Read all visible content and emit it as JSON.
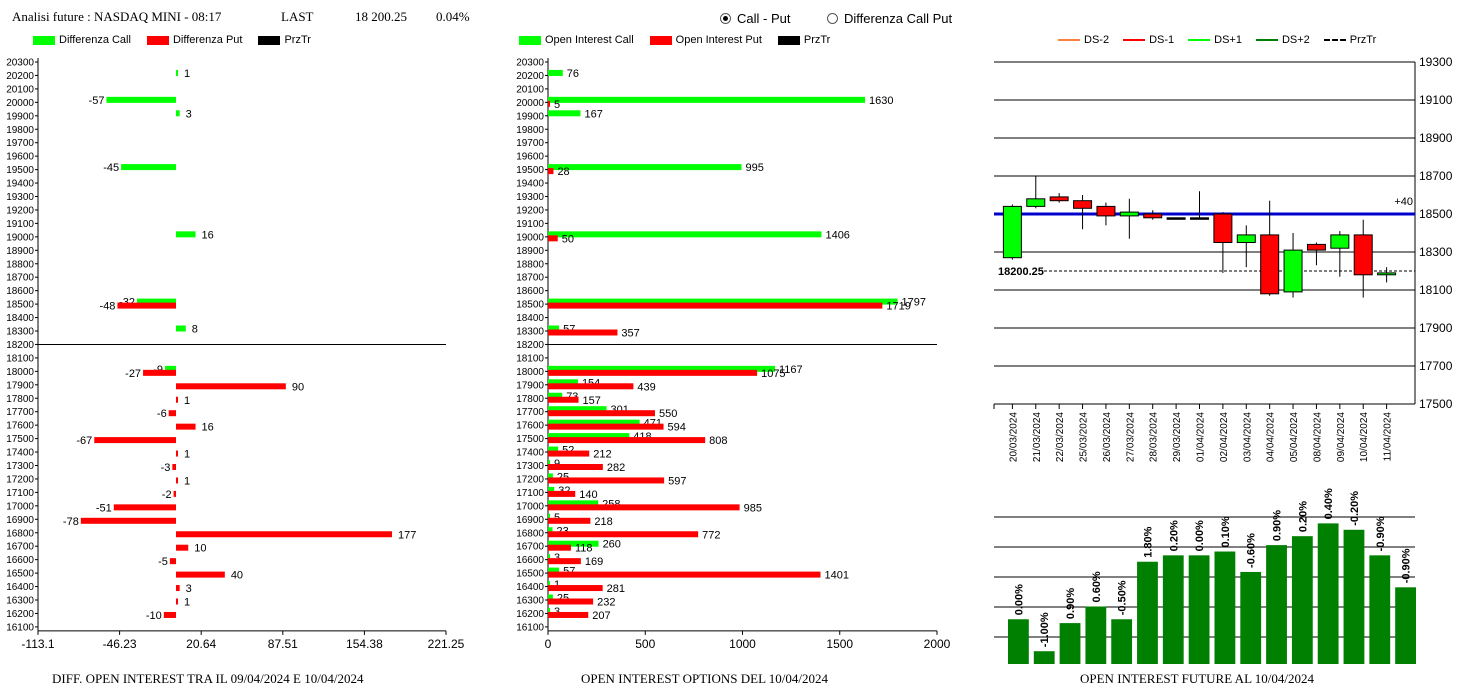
{
  "header": {
    "title": "Analisi future : NASDAQ MINI - 08:17",
    "last_label": "LAST",
    "last_value": "18 200.25",
    "change": "0.04%"
  },
  "radio": {
    "option1": "Call - Put",
    "option2": "Differenza Call Put",
    "selected": "Call - Put"
  },
  "colors": {
    "green": "#00ff00",
    "red": "#ff0000",
    "black": "#000000",
    "dark_green": "#008000",
    "blue": "#0000cc",
    "orange": "#ff8040"
  },
  "legend_left": {
    "a": "Differenza Call",
    "b": "Differenza Put",
    "c": "PrzTr"
  },
  "legend_mid": {
    "a": "Open Interest Call",
    "b": "Open Interest Put",
    "c": "PrzTr"
  },
  "legend_right": {
    "a": "DS-2",
    "b": "DS-1",
    "c": "DS+1",
    "d": "DS+2",
    "e": "PrzTr"
  },
  "captions": {
    "left": "DIFF. OPEN INTEREST TRA IL 09/04/2024 E 10/04/2024",
    "mid": "OPEN INTEREST OPTIONS DEL 10/04/2024",
    "right": "OPEN INTEREST FUTURE AL 10/04/2024"
  },
  "chart_data": [
    {
      "type": "bar",
      "orientation": "horizontal",
      "strikes": [
        20300,
        20200,
        20100,
        20000,
        19900,
        19800,
        19700,
        19600,
        19500,
        19400,
        19300,
        19200,
        19100,
        19000,
        18900,
        18800,
        18700,
        18600,
        18500,
        18400,
        18300,
        18200,
        18100,
        18000,
        17900,
        17800,
        17700,
        17600,
        17500,
        17400,
        17300,
        17200,
        17100,
        17000,
        16900,
        16800,
        16700,
        16600,
        16500,
        16400,
        16300,
        16200,
        16100
      ],
      "xtick_labels": [
        "-113.1",
        "-46.23",
        "20.64",
        "87.51",
        "154.38",
        "221.25"
      ],
      "xlim": [
        -113.1,
        221.25
      ],
      "price_line": 18200,
      "call_diff": [
        {
          "strike": 20200,
          "value": 1
        },
        {
          "strike": 20000,
          "value": -57
        },
        {
          "strike": 19900,
          "value": 3
        },
        {
          "strike": 19500,
          "value": -45
        },
        {
          "strike": 19000,
          "value": 16
        },
        {
          "strike": 18500,
          "value": -32
        },
        {
          "strike": 18300,
          "value": 8
        },
        {
          "strike": 18000,
          "value": -9
        }
      ],
      "put_diff": [
        {
          "strike": 18500,
          "value": -48
        },
        {
          "strike": 18000,
          "value": -27
        },
        {
          "strike": 17900,
          "value": 90
        },
        {
          "strike": 17800,
          "value": 1
        },
        {
          "strike": 17700,
          "value": -6
        },
        {
          "strike": 17600,
          "value": 16
        },
        {
          "strike": 17500,
          "value": -67
        },
        {
          "strike": 17400,
          "value": 1
        },
        {
          "strike": 17300,
          "value": -3
        },
        {
          "strike": 17200,
          "value": 1
        },
        {
          "strike": 17100,
          "value": -2
        },
        {
          "strike": 17000,
          "value": -51
        },
        {
          "strike": 16900,
          "value": -78
        },
        {
          "strike": 16800,
          "value": 177
        },
        {
          "strike": 16700,
          "value": 10
        },
        {
          "strike": 16600,
          "value": -5
        },
        {
          "strike": 16500,
          "value": 40
        },
        {
          "strike": 16400,
          "value": 3
        },
        {
          "strike": 16300,
          "value": 1
        },
        {
          "strike": 16200,
          "value": -10
        }
      ]
    },
    {
      "type": "bar",
      "orientation": "horizontal",
      "strikes": [
        20300,
        20200,
        20100,
        20000,
        19900,
        19800,
        19700,
        19600,
        19500,
        19400,
        19300,
        19200,
        19100,
        19000,
        18900,
        18800,
        18700,
        18600,
        18500,
        18400,
        18300,
        18200,
        18100,
        18000,
        17900,
        17800,
        17700,
        17600,
        17500,
        17400,
        17300,
        17200,
        17100,
        17000,
        16900,
        16800,
        16700,
        16600,
        16500,
        16400,
        16300,
        16200,
        16100
      ],
      "xtick_labels": [
        "0",
        "500",
        "1000",
        "1500",
        "2000"
      ],
      "xlim": [
        0,
        2000
      ],
      "price_line": 18200,
      "call_oi": [
        {
          "strike": 20200,
          "value": 76
        },
        {
          "strike": 20000,
          "value": 1630
        },
        {
          "strike": 19900,
          "value": 167
        },
        {
          "strike": 19500,
          "value": 995
        },
        {
          "strike": 19000,
          "value": 1406
        },
        {
          "strike": 18500,
          "value": 1797
        },
        {
          "strike": 18300,
          "value": 57
        },
        {
          "strike": 18000,
          "value": 1167
        },
        {
          "strike": 17900,
          "value": 154
        },
        {
          "strike": 17800,
          "value": 73
        },
        {
          "strike": 17700,
          "value": 301
        },
        {
          "strike": 17600,
          "value": 471
        },
        {
          "strike": 17500,
          "value": 418
        },
        {
          "strike": 17400,
          "value": 52
        },
        {
          "strike": 17300,
          "value": 9
        },
        {
          "strike": 17200,
          "value": 25
        },
        {
          "strike": 17100,
          "value": 32
        },
        {
          "strike": 17000,
          "value": 258
        },
        {
          "strike": 16900,
          "value": 5
        },
        {
          "strike": 16800,
          "value": 23
        },
        {
          "strike": 16700,
          "value": 260
        },
        {
          "strike": 16600,
          "value": 3
        },
        {
          "strike": 16500,
          "value": 57
        },
        {
          "strike": 16400,
          "value": 1
        },
        {
          "strike": 16300,
          "value": 25
        },
        {
          "strike": 16200,
          "value": 3
        }
      ],
      "put_oi": [
        {
          "strike": 20000,
          "value": 5
        },
        {
          "strike": 19500,
          "value": 28
        },
        {
          "strike": 19000,
          "value": 50
        },
        {
          "strike": 18500,
          "value": 1719
        },
        {
          "strike": 18300,
          "value": 357
        },
        {
          "strike": 18000,
          "value": 1075
        },
        {
          "strike": 17900,
          "value": 439
        },
        {
          "strike": 17800,
          "value": 157
        },
        {
          "strike": 17700,
          "value": 550
        },
        {
          "strike": 17600,
          "value": 594
        },
        {
          "strike": 17500,
          "value": 808
        },
        {
          "strike": 17400,
          "value": 212
        },
        {
          "strike": 17300,
          "value": 282
        },
        {
          "strike": 17200,
          "value": 597
        },
        {
          "strike": 17100,
          "value": 140
        },
        {
          "strike": 17000,
          "value": 985
        },
        {
          "strike": 16900,
          "value": 218
        },
        {
          "strike": 16800,
          "value": 772
        },
        {
          "strike": 16700,
          "value": 118
        },
        {
          "strike": 16600,
          "value": 169
        },
        {
          "strike": 16500,
          "value": 1401
        },
        {
          "strike": 16400,
          "value": 281
        },
        {
          "strike": 16300,
          "value": 232
        },
        {
          "strike": 16200,
          "value": 207
        }
      ]
    },
    {
      "type": "candlestick",
      "yticks": [
        19300,
        19100,
        18900,
        18700,
        18500,
        18300,
        18100,
        17900,
        17700,
        17500
      ],
      "ylim": [
        17500,
        19300
      ],
      "grid": true,
      "blue_line": 18500,
      "blue_label": "+40",
      "price_line": 18200.25,
      "price_label": "18200.25",
      "candles": [
        {
          "date": "20/03/2024",
          "open": 18270,
          "close": 18540,
          "high": 18550,
          "low": 18260
        },
        {
          "date": "21/03/2024",
          "open": 18540,
          "close": 18580,
          "high": 18700,
          "low": 18530
        },
        {
          "date": "22/03/2024",
          "open": 18590,
          "close": 18570,
          "high": 18610,
          "low": 18560
        },
        {
          "date": "25/03/2024",
          "open": 18570,
          "close": 18530,
          "high": 18600,
          "low": 18420
        },
        {
          "date": "26/03/2024",
          "open": 18540,
          "close": 18490,
          "high": 18560,
          "low": 18440
        },
        {
          "date": "27/03/2024",
          "open": 18490,
          "close": 18510,
          "high": 18580,
          "low": 18370
        },
        {
          "date": "28/03/2024",
          "open": 18500,
          "close": 18480,
          "high": 18520,
          "low": 18470
        },
        {
          "date": "29/03/2024",
          "open": 18480,
          "close": 18480,
          "high": 18480,
          "low": 18480
        },
        {
          "date": "01/04/2024",
          "open": 18480,
          "close": 18480,
          "high": 18620,
          "low": 18480
        },
        {
          "date": "02/04/2024",
          "open": 18500,
          "close": 18350,
          "high": 18510,
          "low": 18190
        },
        {
          "date": "03/04/2024",
          "open": 18350,
          "close": 18390,
          "high": 18440,
          "low": 18220
        },
        {
          "date": "04/04/2024",
          "open": 18390,
          "close": 18080,
          "high": 18570,
          "low": 18070
        },
        {
          "date": "05/04/2024",
          "open": 18090,
          "close": 18310,
          "high": 18400,
          "low": 18060
        },
        {
          "date": "08/04/2024",
          "open": 18340,
          "close": 18310,
          "high": 18350,
          "low": 18230
        },
        {
          "date": "09/04/2024",
          "open": 18320,
          "close": 18390,
          "high": 18410,
          "low": 18170
        },
        {
          "date": "10/04/2024",
          "open": 18390,
          "close": 18180,
          "high": 18470,
          "low": 18060
        },
        {
          "date": "11/04/2024",
          "open": 18180,
          "close": 18190,
          "high": 18220,
          "low": 18140
        }
      ]
    },
    {
      "type": "bar",
      "values": [
        35,
        10,
        32,
        45,
        35,
        80,
        85,
        85,
        88,
        72,
        93,
        100,
        110,
        105,
        85,
        60
      ],
      "labels": [
        "0.00%",
        "-1.00%",
        "0.90%",
        "0.60%",
        "-0.50%",
        "1.80%",
        "0.20%",
        "0.00%",
        "0.10%",
        "-0.60%",
        "0.90%",
        "0.20%",
        "0.40%",
        "-0.20%",
        "-0.90%",
        "-0.90%"
      ]
    }
  ]
}
